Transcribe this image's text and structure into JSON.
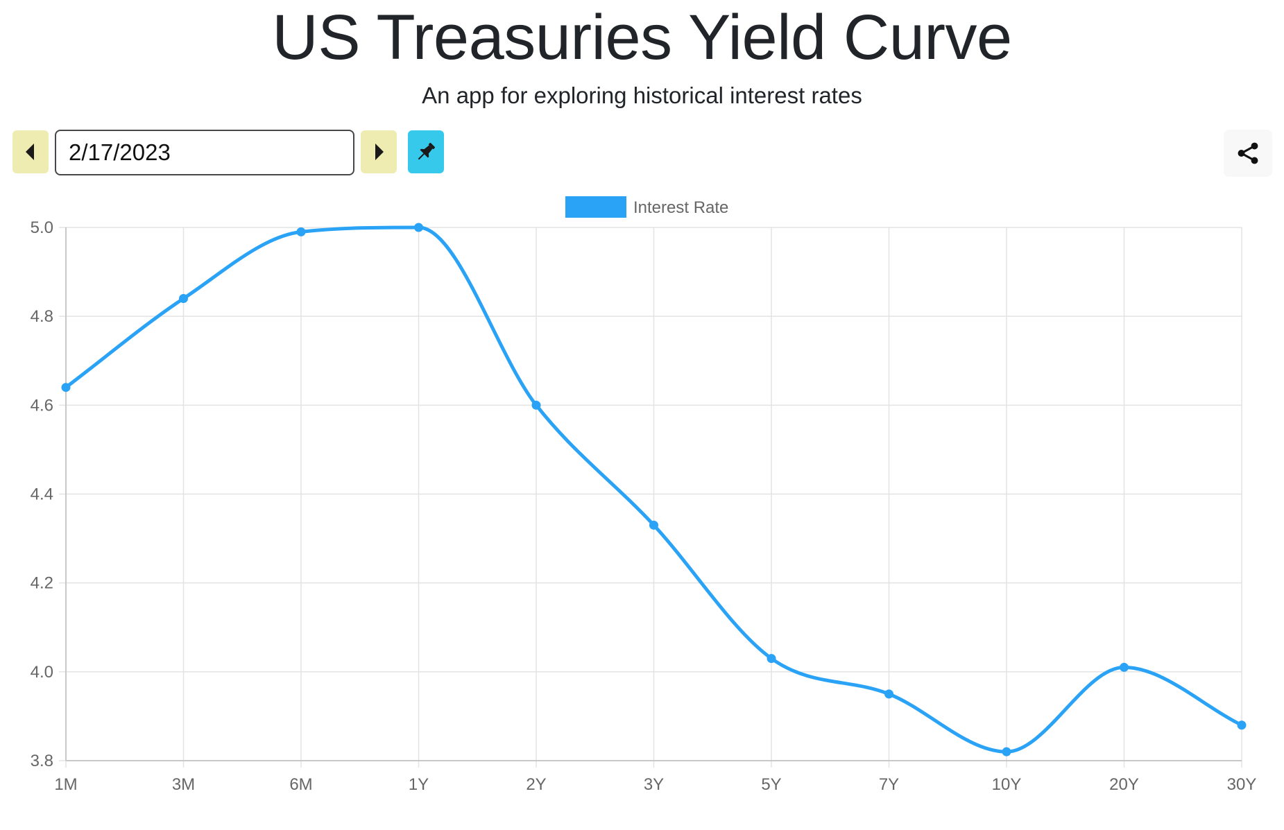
{
  "header": {
    "title": "US Treasuries Yield Curve",
    "subtitle": "An app for exploring historical interest rates"
  },
  "controls": {
    "date_value": "2/17/2023",
    "prev_icon": "caret-left-icon",
    "next_icon": "caret-right-icon",
    "pin_icon": "pin-icon",
    "share_icon": "share-icon"
  },
  "colors": {
    "series": "#2aa3f7",
    "nav_button": "#efecb1",
    "pin_button": "#37c9ec",
    "grid": "#e3e3e3",
    "tick_text": "#666666"
  },
  "chart_data": {
    "type": "line",
    "categories": [
      "1M",
      "3M",
      "6M",
      "1Y",
      "2Y",
      "3Y",
      "5Y",
      "7Y",
      "10Y",
      "20Y",
      "30Y"
    ],
    "series": [
      {
        "name": "Interest Rate",
        "values": [
          4.64,
          4.84,
          4.99,
          5.0,
          4.6,
          4.33,
          4.03,
          3.95,
          3.82,
          4.01,
          3.88
        ]
      }
    ],
    "y_ticks": [
      "3.8",
      "4.0",
      "4.2",
      "4.4",
      "4.6",
      "4.8",
      "5.0"
    ],
    "ylim": [
      3.8,
      5.0
    ],
    "legend_position": "top-center",
    "grid": true,
    "curve": "smooth"
  }
}
